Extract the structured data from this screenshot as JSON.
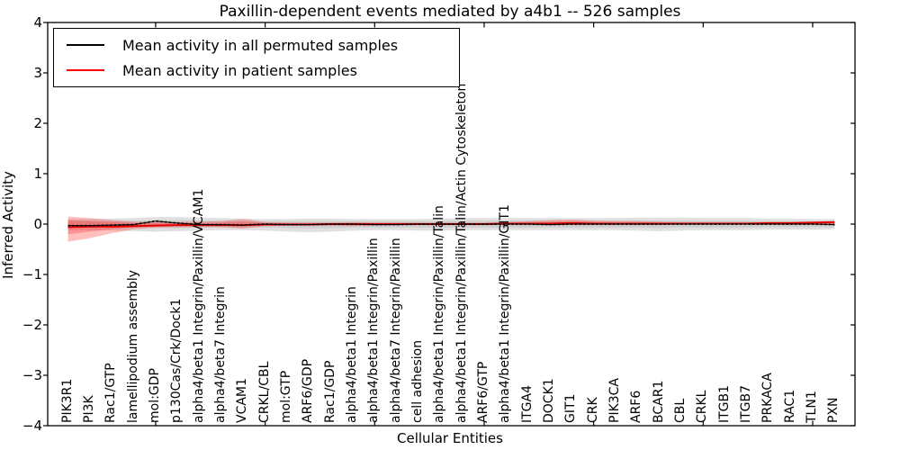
{
  "title": "Paxillin-dependent events mediated by a4b1 -- 526 samples",
  "chart_data": {
    "type": "line",
    "title": "Paxillin-dependent events mediated by a4b1 -- 526 samples",
    "xlabel": "Cellular Entities",
    "ylabel": "Inferred Activity",
    "ylim": [
      -4,
      4
    ],
    "yticks": [
      -4,
      -3,
      -2,
      -1,
      0,
      1,
      2,
      3,
      4
    ],
    "ytick_labels": [
      "−4",
      "−3",
      "−2",
      "−1",
      "0",
      "1",
      "2",
      "3",
      "4"
    ],
    "grid": false,
    "legend_position": "upper left",
    "legend": {
      "entries": [
        {
          "label": "Mean activity in all permuted samples",
          "color": "#000000"
        },
        {
          "label": "Mean activity in patient samples",
          "color": "#ff0000"
        }
      ]
    },
    "categories": [
      "PIK3R1",
      "PI3K",
      "Rac1/GTP",
      "lamellipodium assembly",
      "mol:GDP",
      "p130Cas/Crk/Dock1",
      "alpha4/beta1 Integrin/Paxillin/VCAM1",
      "alpha4/beta7 Integrin",
      "VCAM1",
      "CRKL/CBL",
      "mol:GTP",
      "ARF6/GDP",
      "Rac1/GDP",
      "alpha4/beta1 Integrin",
      "alpha4/beta1 Integrin/Paxillin",
      "alpha4/beta7 Integrin/Paxillin",
      "cell adhesion",
      "alpha4/beta1 Integrin/Paxillin/Talin",
      "alpha4/beta1 Integrin/Paxillin/Talin/Actin Cytoskeleton",
      "ARF6/GTP",
      "alpha4/beta1 Integrin/Paxillin/GIT1",
      "ITGA4",
      "DOCK1",
      "GIT1",
      "CRK",
      "PIK3CA",
      "ARF6",
      "BCAR1",
      "CBL",
      "CRKL",
      "ITGB1",
      "ITGB7",
      "PRKACA",
      "RAC1",
      "TLN1",
      "PXN"
    ],
    "series": [
      {
        "name": "Mean activity in all permuted samples",
        "values": [
          -0.03,
          -0.03,
          -0.02,
          -0.01,
          0.06,
          0.02,
          -0.01,
          -0.01,
          -0.02,
          0.0,
          -0.01,
          -0.01,
          0.0,
          0.0,
          -0.01,
          -0.01,
          0.0,
          0.0,
          0.0,
          0.0,
          0.0,
          0.0,
          -0.01,
          0.0,
          0.0,
          0.0,
          0.0,
          0.0,
          0.0,
          0.0,
          0.0,
          0.0,
          0.0,
          0.0,
          0.0,
          -0.01
        ]
      },
      {
        "name": "Mean activity in patient samples",
        "values": [
          -0.06,
          -0.05,
          -0.05,
          -0.04,
          -0.03,
          -0.02,
          -0.02,
          -0.02,
          -0.02,
          -0.01,
          -0.01,
          -0.01,
          0.0,
          0.0,
          0.0,
          0.0,
          0.0,
          0.0,
          0.0,
          0.0,
          0.01,
          0.01,
          0.01,
          0.02,
          0.01,
          0.01,
          0.01,
          0.01,
          0.01,
          0.01,
          0.01,
          0.01,
          0.02,
          0.02,
          0.03,
          0.04
        ]
      }
    ],
    "bands": {
      "permuted_outer": {
        "upper": [
          0.1,
          0.1,
          0.11,
          0.12,
          0.14,
          0.14,
          0.13,
          0.12,
          0.11,
          0.1,
          0.1,
          0.11,
          0.11,
          0.1,
          0.1,
          0.1,
          0.1,
          0.11,
          0.12,
          0.12,
          0.12,
          0.12,
          0.12,
          0.12,
          0.12,
          0.12,
          0.13,
          0.13,
          0.13,
          0.12,
          0.12,
          0.12,
          0.11,
          0.11,
          0.1,
          0.1
        ],
        "lower": [
          -0.12,
          -0.12,
          -0.13,
          -0.14,
          -0.15,
          -0.14,
          -0.13,
          -0.12,
          -0.12,
          -0.13,
          -0.15,
          -0.16,
          -0.15,
          -0.13,
          -0.12,
          -0.12,
          -0.13,
          -0.13,
          -0.12,
          -0.12,
          -0.12,
          -0.12,
          -0.12,
          -0.12,
          -0.12,
          -0.12,
          -0.13,
          -0.14,
          -0.13,
          -0.12,
          -0.12,
          -0.12,
          -0.11,
          -0.11,
          -0.11,
          -0.1
        ]
      },
      "permuted_inner": {
        "upper": [
          0.06,
          0.06,
          0.06,
          0.07,
          0.08,
          0.08,
          0.07,
          0.07,
          0.06,
          0.06,
          0.06,
          0.06,
          0.06,
          0.06,
          0.06,
          0.06,
          0.06,
          0.06,
          0.07,
          0.07,
          0.07,
          0.07,
          0.07,
          0.07,
          0.07,
          0.07,
          0.07,
          0.07,
          0.07,
          0.07,
          0.07,
          0.07,
          0.06,
          0.06,
          0.06,
          0.06
        ],
        "lower": [
          -0.07,
          -0.07,
          -0.07,
          -0.08,
          -0.08,
          -0.08,
          -0.07,
          -0.07,
          -0.07,
          -0.07,
          -0.08,
          -0.09,
          -0.08,
          -0.07,
          -0.07,
          -0.07,
          -0.07,
          -0.07,
          -0.07,
          -0.07,
          -0.07,
          -0.07,
          -0.07,
          -0.07,
          -0.07,
          -0.07,
          -0.07,
          -0.08,
          -0.07,
          -0.07,
          -0.07,
          -0.07,
          -0.06,
          -0.06,
          -0.06,
          -0.06
        ]
      },
      "patient_outer": {
        "upper": [
          0.15,
          0.12,
          0.08,
          0.05,
          0.04,
          0.04,
          0.05,
          0.06,
          0.1,
          0.04,
          0.03,
          0.03,
          0.03,
          0.04,
          0.03,
          0.03,
          0.03,
          0.03,
          0.03,
          0.03,
          0.04,
          0.06,
          0.08,
          0.09,
          0.07,
          0.06,
          0.06,
          0.05,
          0.04,
          0.04,
          0.04,
          0.04,
          0.04,
          0.04,
          0.05,
          0.05
        ],
        "lower": [
          -0.35,
          -0.28,
          -0.18,
          -0.1,
          -0.07,
          -0.06,
          -0.06,
          -0.06,
          -0.09,
          -0.04,
          -0.03,
          -0.03,
          -0.03,
          -0.04,
          -0.03,
          -0.02,
          -0.02,
          -0.02,
          -0.02,
          -0.02,
          -0.02,
          -0.02,
          -0.02,
          -0.02,
          -0.02,
          -0.02,
          -0.02,
          -0.02,
          -0.01,
          -0.01,
          -0.01,
          -0.01,
          -0.01,
          -0.01,
          -0.01,
          0.0
        ]
      },
      "patient_inner": {
        "upper": [
          0.08,
          0.06,
          0.04,
          0.02,
          0.02,
          0.02,
          0.02,
          0.03,
          0.05,
          0.02,
          0.02,
          0.02,
          0.02,
          0.02,
          0.02,
          0.02,
          0.02,
          0.02,
          0.02,
          0.02,
          0.02,
          0.03,
          0.04,
          0.05,
          0.04,
          0.03,
          0.03,
          0.03,
          0.02,
          0.02,
          0.02,
          0.02,
          0.02,
          0.02,
          0.03,
          0.03
        ],
        "lower": [
          -0.2,
          -0.15,
          -0.1,
          -0.06,
          -0.04,
          -0.03,
          -0.03,
          -0.03,
          -0.05,
          -0.02,
          -0.02,
          -0.02,
          -0.02,
          -0.02,
          -0.02,
          -0.01,
          -0.01,
          -0.01,
          -0.01,
          -0.01,
          -0.01,
          -0.01,
          -0.01,
          -0.01,
          -0.01,
          -0.01,
          -0.01,
          -0.01,
          -0.01,
          -0.01,
          -0.01,
          -0.01,
          0.0,
          0.0,
          0.0,
          0.01
        ]
      }
    },
    "colors": {
      "permuted_line": "#000000",
      "patient_line": "#e60000",
      "permuted_band": "#919191",
      "patient_band": "#ff2a2a",
      "axis": "#000000"
    }
  }
}
